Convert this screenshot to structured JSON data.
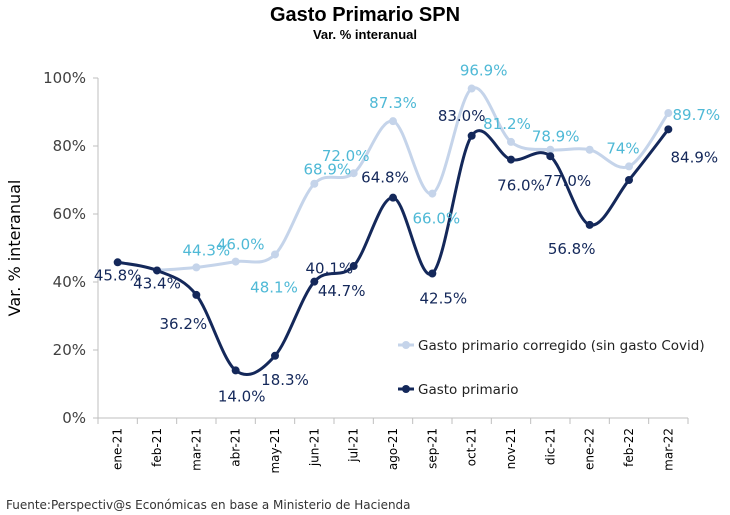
{
  "title": "Gasto Primario SPN",
  "subtitle": "Var. % interanual",
  "source": "Fuente:Perspectiv@s Económicas en base a Ministerio de Hacienda",
  "colors": {
    "corrected_line": "#c5d4ea",
    "corrected_label": "#4fb9d6",
    "primary": "#14285a",
    "axis": "#bfbfbf"
  },
  "chart_data": {
    "type": "line",
    "title": "Gasto Primario SPN",
    "subtitle": "Var. % interanual",
    "xlabel": "",
    "ylabel": "Var. % interanual",
    "ylim": [
      0,
      100
    ],
    "yticks": [
      "0%",
      "20%",
      "40%",
      "60%",
      "80%",
      "100%"
    ],
    "grid": false,
    "legend": "right",
    "categories": [
      "ene-21",
      "feb-21",
      "mar-21",
      "abr-21",
      "may-21",
      "jun-21",
      "jul-21",
      "ago-21",
      "sep-21",
      "oct-21",
      "nov-21",
      "dic-21",
      "ene-22",
      "feb-22",
      "mar-22"
    ],
    "series": [
      {
        "name": "Gasto primario corregido (sin gasto Covid)",
        "values": [
          null,
          43.4,
          44.3,
          46.0,
          48.1,
          68.9,
          72.0,
          87.3,
          66.0,
          96.9,
          81.2,
          78.9,
          78.9,
          74,
          89.7
        ],
        "labels": [
          "",
          "",
          "44.3%",
          "46.0%",
          "48.1%",
          "68.9%",
          "72.0%",
          "87.3%",
          "66.0%",
          "96.9%",
          "81.2%",
          "",
          "78.9%",
          "74%",
          "89.7%"
        ]
      },
      {
        "name": "Gasto primario",
        "values": [
          45.8,
          43.4,
          36.2,
          14.0,
          18.3,
          40.1,
          44.7,
          64.8,
          42.5,
          83.0,
          76.0,
          77.0,
          56.8,
          70,
          84.9
        ],
        "labels": [
          "45.8%",
          "43.4%",
          "36.2%",
          "14.0%",
          "18.3%",
          "40.1%",
          "44.7%",
          "64.8%",
          "42.5%",
          "83.0%",
          "76.0%",
          "77.0%",
          "56.8%",
          "",
          "84.9%"
        ]
      }
    ]
  }
}
